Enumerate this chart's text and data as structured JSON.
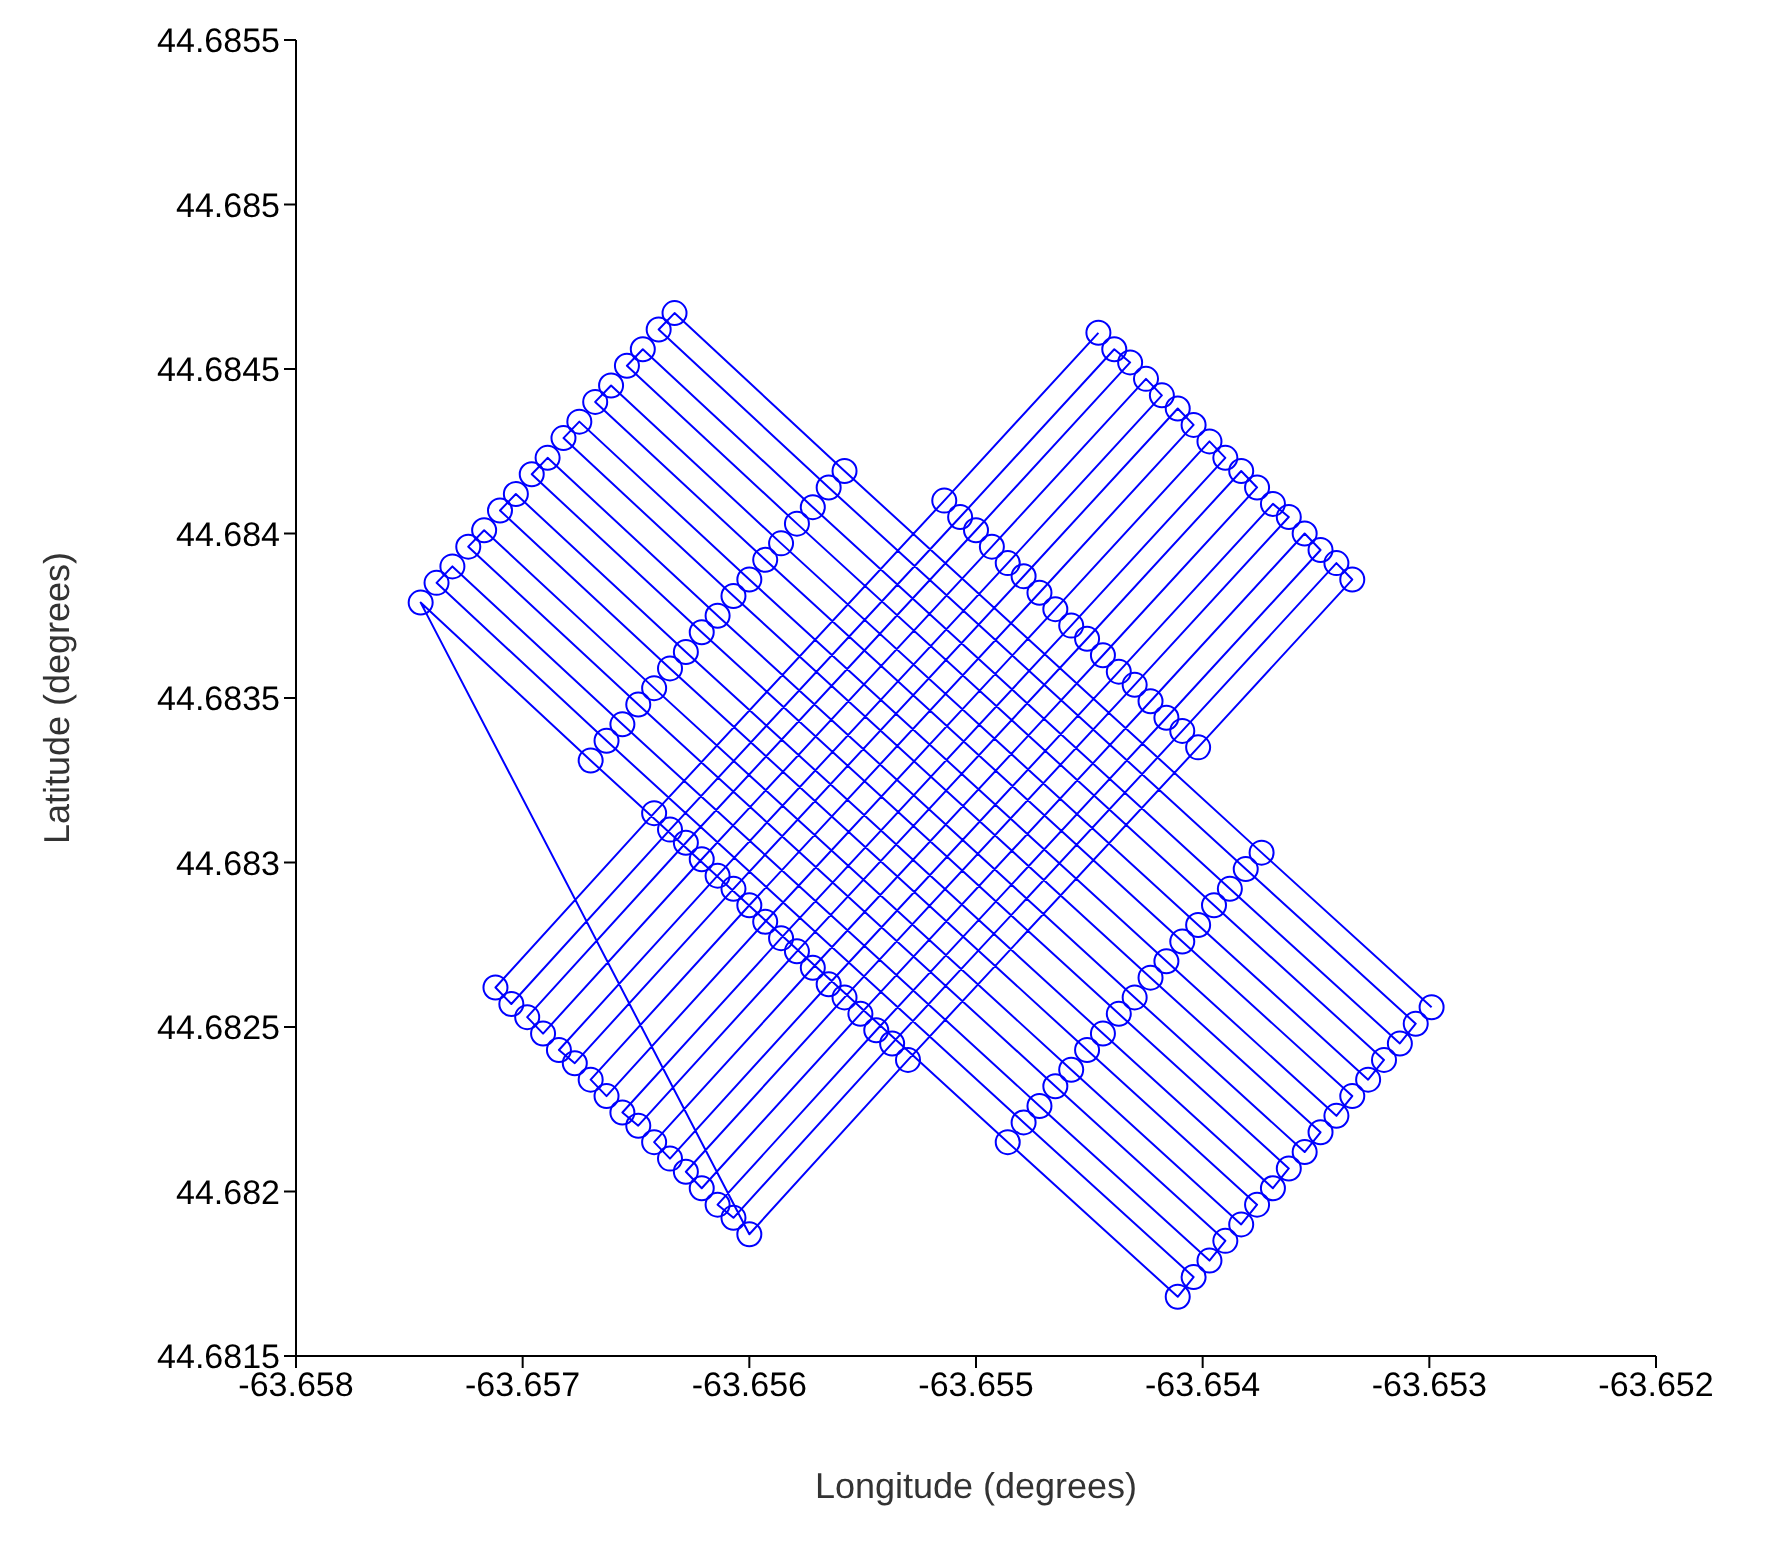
{
  "chart_data": {
    "type": "line",
    "xlabel": "Longitude (degrees)",
    "ylabel": "Latitude (degrees)",
    "xlim": [
      -63.658,
      -63.652
    ],
    "xticks": [
      -63.658,
      -63.657,
      -63.656,
      -63.655,
      -63.654,
      -63.653,
      -63.652
    ],
    "ylim": [
      44.6815,
      44.6855
    ],
    "yticks": [
      44.6815,
      44.682,
      44.6825,
      44.683,
      44.6835,
      44.684,
      44.6845,
      44.685,
      44.6855
    ],
    "grid": false,
    "legend": false,
    "marker": "circle",
    "line_style": "solid",
    "x": [
      -63.65446,
      -63.65514,
      -63.65642,
      -63.65712,
      -63.65705,
      -63.65635,
      -63.65507,
      -63.65439,
      -63.65432,
      -63.655,
      -63.65628,
      -63.65698,
      -63.65691,
      -63.65621,
      -63.65493,
      -63.65425,
      -63.65418,
      -63.65486,
      -63.65614,
      -63.65684,
      -63.65677,
      -63.65607,
      -63.65479,
      -63.65411,
      -63.65404,
      -63.65472,
      -63.656,
      -63.6567,
      -63.65663,
      -63.65593,
      -63.65465,
      -63.65397,
      -63.6539,
      -63.65458,
      -63.65586,
      -63.65656,
      -63.65649,
      -63.65579,
      -63.65451,
      -63.65383,
      -63.65376,
      -63.65444,
      -63.65572,
      -63.65642,
      -63.65635,
      -63.65565,
      -63.65437,
      -63.65369,
      -63.65362,
      -63.6543,
      -63.65558,
      -63.65628,
      -63.65621,
      -63.65551,
      -63.65423,
      -63.65355,
      -63.65348,
      -63.65416,
      -63.65544,
      -63.65614,
      -63.65607,
      -63.65537,
      -63.65409,
      -63.65341,
      -63.65334,
      -63.65402,
      -63.6553,
      -63.656,
      -63.65745,
      -63.6567,
      -63.65486,
      -63.65411,
      -63.65404,
      -63.65479,
      -63.65663,
      -63.65738,
      -63.65731,
      -63.65656,
      -63.65472,
      -63.65397,
      -63.6539,
      -63.65465,
      -63.65649,
      -63.65724,
      -63.65717,
      -63.65642,
      -63.65458,
      -63.65383,
      -63.65376,
      -63.65451,
      -63.65635,
      -63.6571,
      -63.65703,
      -63.65628,
      -63.65444,
      -63.65369,
      -63.65362,
      -63.65437,
      -63.65621,
      -63.65696,
      -63.65689,
      -63.65614,
      -63.6543,
      -63.65355,
      -63.65348,
      -63.65423,
      -63.65607,
      -63.65682,
      -63.65675,
      -63.656,
      -63.65416,
      -63.65341,
      -63.65334,
      -63.65409,
      -63.65593,
      -63.65668,
      -63.65661,
      -63.65586,
      -63.65402,
      -63.65327,
      -63.6532,
      -63.65395,
      -63.65579,
      -63.65654,
      -63.65647,
      -63.65572,
      -63.65388,
      -63.65313,
      -63.65306,
      -63.65381,
      -63.65565,
      -63.6564,
      -63.65633,
      -63.65558,
      -63.65374,
      -63.65299
    ],
    "series": [
      {
        "color": "#0000ff",
        "values": [
          44.68461,
          44.6841,
          44.68315,
          44.68262,
          44.68257,
          44.6831,
          44.68405,
          44.68456,
          44.68452,
          44.68401,
          44.68306,
          44.68253,
          44.68248,
          44.68301,
          44.68396,
          44.68447,
          44.68442,
          44.68391,
          44.68296,
          44.68243,
          44.68239,
          44.68292,
          44.68387,
          44.68438,
          44.68433,
          44.68382,
          44.68287,
          44.68234,
          44.68229,
          44.68282,
          44.68377,
          44.68428,
          44.68423,
          44.68372,
          44.68277,
          44.68224,
          44.6822,
          44.68273,
          44.68368,
          44.68419,
          44.68414,
          44.68363,
          44.68268,
          44.68215,
          44.6821,
          44.68263,
          44.68358,
          44.68409,
          44.68405,
          44.68354,
          44.68259,
          44.68206,
          44.68201,
          44.68254,
          44.68349,
          44.684,
          44.68395,
          44.68344,
          44.68249,
          44.68196,
          44.68192,
          44.68245,
          44.6834,
          44.68391,
          44.68386,
          44.68335,
          44.6824,
          44.68187,
          44.68379,
          44.68331,
          44.68215,
          44.68168,
          44.68174,
          44.68221,
          44.68337,
          44.68385,
          44.6839,
          44.68342,
          44.68226,
          44.68179,
          44.68185,
          44.68232,
          44.68348,
          44.68396,
          44.68401,
          44.68353,
          44.68237,
          44.6819,
          44.68196,
          44.68243,
          44.68359,
          44.68407,
          44.68412,
          44.68364,
          44.68248,
          44.68201,
          44.68207,
          44.68254,
          44.6837,
          44.68418,
          44.68423,
          44.68375,
          44.68259,
          44.68212,
          44.68218,
          44.68265,
          44.68381,
          44.68429,
          44.68434,
          44.68386,
          44.6827,
          44.68223,
          44.68229,
          44.68276,
          44.68392,
          44.6844,
          44.68445,
          44.68397,
          44.68281,
          44.68234,
          44.6824,
          44.68287,
          44.68403,
          44.68451,
          44.68456,
          44.68408,
          44.68292,
          44.68245,
          44.68251,
          44.68298,
          44.68414,
          44.68462,
          44.68467,
          44.68419,
          44.68303,
          44.68256
        ]
      }
    ]
  }
}
